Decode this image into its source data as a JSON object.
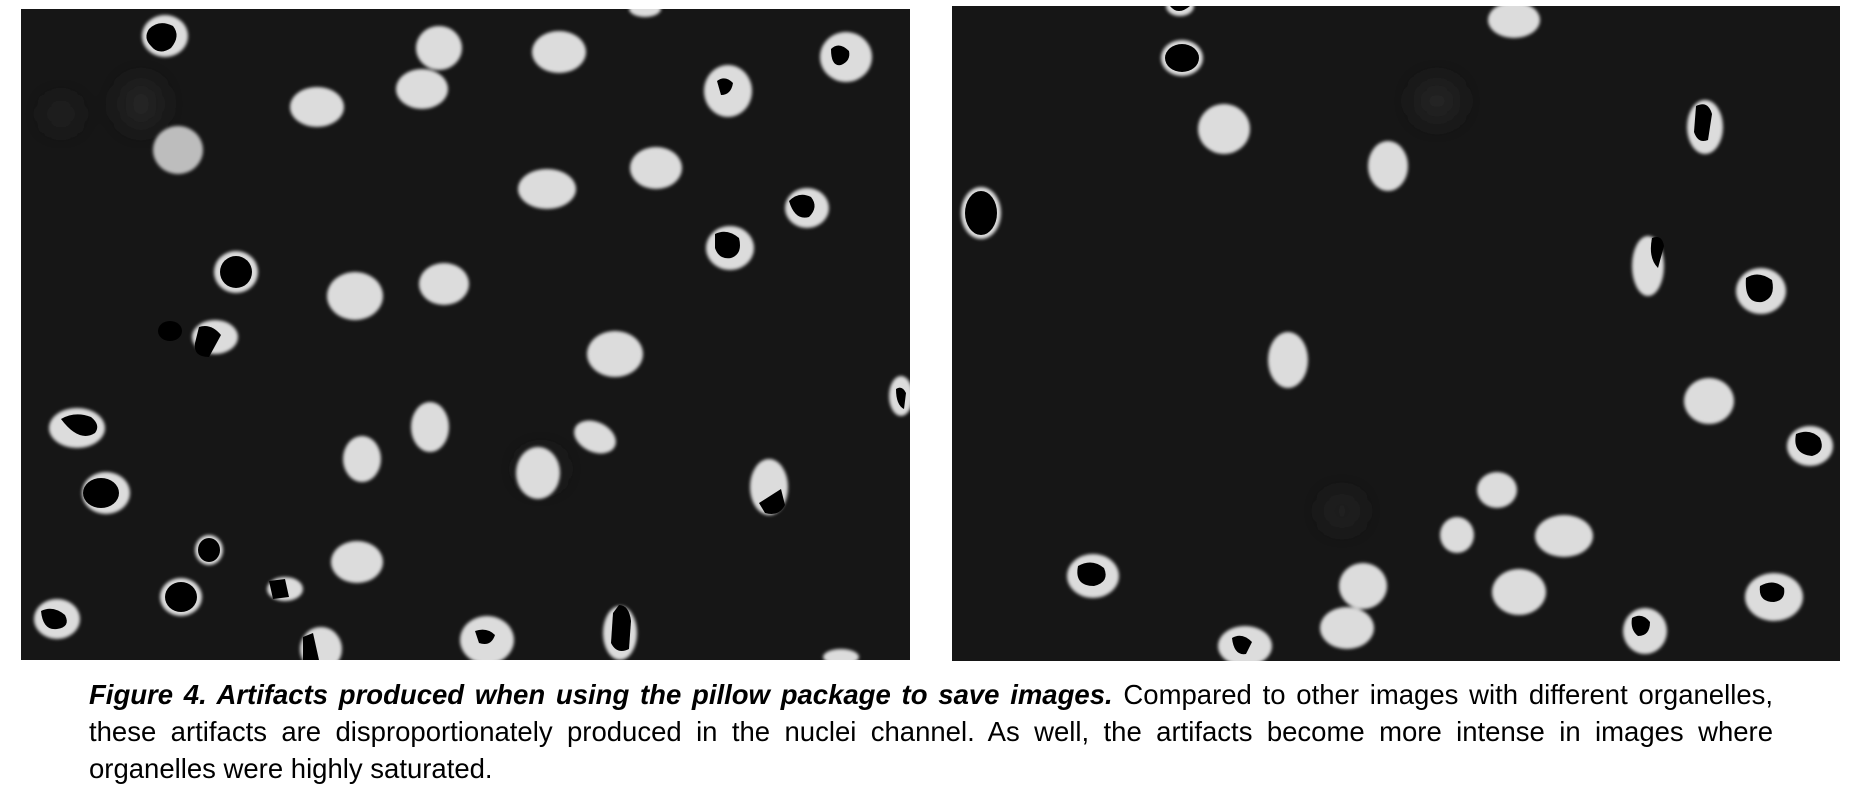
{
  "figure": {
    "caption": {
      "lead": "Figure 4. Artifacts produced when using the pillow package to save images.",
      "body": "Compared to other images with different organelles, these artifacts are disproportionately produced in the nuclei channel. As well, the artifacts become more intense in images where organelles were highly saturated."
    }
  }
}
